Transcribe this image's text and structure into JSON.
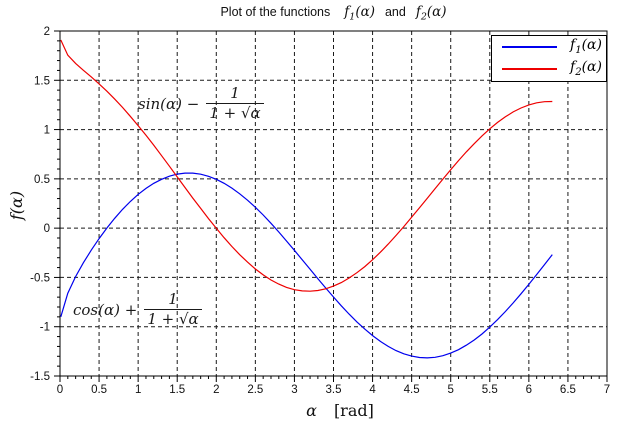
{
  "title": {
    "prefix": "Plot of the functions",
    "f1": {
      "base": "f",
      "sub": "1",
      "args": "(α)"
    },
    "conjunction": "and",
    "f2": {
      "base": "f",
      "sub": "2",
      "args": "(α)"
    }
  },
  "axes": {
    "x_symbol": "α",
    "x_unit": "[rad]",
    "y_base": "f",
    "y_args": "(α)"
  },
  "legend": {
    "entries": [
      {
        "base": "f",
        "sub": "1",
        "args": "(α)",
        "color": "#0000ee"
      },
      {
        "base": "f",
        "sub": "2",
        "args": "(α)",
        "color": "#ee0000"
      }
    ]
  },
  "annotations": [
    {
      "lead": "sin(α) −",
      "numerator": "1",
      "den_prefix": "1 + ",
      "sqrt_symbol": "√",
      "sqrt_arg": "α"
    },
    {
      "lead": "cos(α) +",
      "numerator": "1",
      "den_prefix": "1 + ",
      "sqrt_symbol": "√",
      "sqrt_arg": "α"
    }
  ],
  "chart_data": {
    "type": "line",
    "title": "Plot of the functions f1(α) and f2(α)",
    "xlabel": "α [rad]",
    "ylabel": "f(α)",
    "xlim": [
      0,
      7
    ],
    "ylim": [
      -1.5,
      2
    ],
    "grid": true,
    "grid_style": "dashed",
    "grid_color": "#1a1a1a",
    "tick_major_step": 0.5,
    "tick_minor_step": 0.1,
    "xtick_labels": [
      "0",
      "0.5",
      "1",
      "1.5",
      "2",
      "2.5",
      "3",
      "3.5",
      "4",
      "4.5",
      "5",
      "5.5",
      "6",
      "6.5",
      "7"
    ],
    "ytick_labels": [
      "2",
      "1.5",
      "1",
      "0.5",
      "0",
      "-0.5",
      "-1",
      "-1.5"
    ],
    "legend_position": "top-right",
    "x": [
      0.01,
      0.1,
      0.2,
      0.3,
      0.4,
      0.5,
      0.6,
      0.7,
      0.8,
      0.9,
      1.0,
      1.1,
      1.2,
      1.3,
      1.4,
      1.5,
      1.6,
      1.7,
      1.8,
      1.9,
      2.0,
      2.1,
      2.2,
      2.3,
      2.4,
      2.5,
      2.6,
      2.7,
      2.8,
      2.9,
      3.0,
      3.1,
      3.2,
      3.3,
      3.4,
      3.5,
      3.6,
      3.7,
      3.8,
      3.9,
      4.0,
      4.1,
      4.2,
      4.3,
      4.4,
      4.5,
      4.6,
      4.7,
      4.8,
      4.9,
      5.0,
      5.1,
      5.2,
      5.3,
      5.4,
      5.5,
      5.6,
      5.7,
      5.8,
      5.9,
      6.0,
      6.1,
      6.2,
      6.3
    ],
    "series": [
      {
        "name": "f1(α)",
        "annotation": "sin(α) − 1/(1+√α)",
        "color": "#0000ee",
        "values": [
          -0.899,
          -0.66,
          -0.492,
          -0.351,
          -0.223,
          -0.106,
          0.001,
          0.1,
          0.19,
          0.27,
          0.342,
          0.403,
          0.455,
          0.496,
          0.527,
          0.548,
          0.558,
          0.558,
          0.547,
          0.526,
          0.495,
          0.455,
          0.406,
          0.348,
          0.283,
          0.211,
          0.133,
          0.049,
          -0.039,
          -0.131,
          -0.225,
          -0.321,
          -0.417,
          -0.513,
          -0.607,
          -0.699,
          -0.788,
          -0.872,
          -0.951,
          -1.024,
          -1.09,
          -1.149,
          -1.2,
          -1.242,
          -1.275,
          -1.298,
          -1.312,
          -1.316,
          -1.31,
          -1.294,
          -1.268,
          -1.233,
          -1.188,
          -1.135,
          -1.074,
          -1.004,
          -0.928,
          -0.846,
          -0.758,
          -0.666,
          -0.569,
          -0.47,
          -0.37,
          -0.268
        ]
      },
      {
        "name": "f2(α)",
        "annotation": "cos(α) + 1/(1+√α)",
        "color": "#ee0000",
        "values": [
          1.909,
          1.755,
          1.671,
          1.601,
          1.534,
          1.463,
          1.389,
          1.309,
          1.225,
          1.135,
          1.04,
          0.942,
          0.84,
          0.735,
          0.628,
          0.52,
          0.412,
          0.305,
          0.2,
          0.097,
          -0.002,
          -0.097,
          -0.186,
          -0.269,
          -0.345,
          -0.414,
          -0.474,
          -0.526,
          -0.568,
          -0.601,
          -0.624,
          -0.637,
          -0.64,
          -0.633,
          -0.615,
          -0.588,
          -0.552,
          -0.506,
          -0.452,
          -0.39,
          -0.32,
          -0.244,
          -0.162,
          -0.075,
          0.016,
          0.11,
          0.206,
          0.303,
          0.401,
          0.498,
          0.593,
          0.685,
          0.773,
          0.857,
          0.936,
          1.008,
          1.073,
          1.13,
          1.179,
          1.219,
          1.25,
          1.272,
          1.283,
          1.285
        ]
      }
    ]
  }
}
